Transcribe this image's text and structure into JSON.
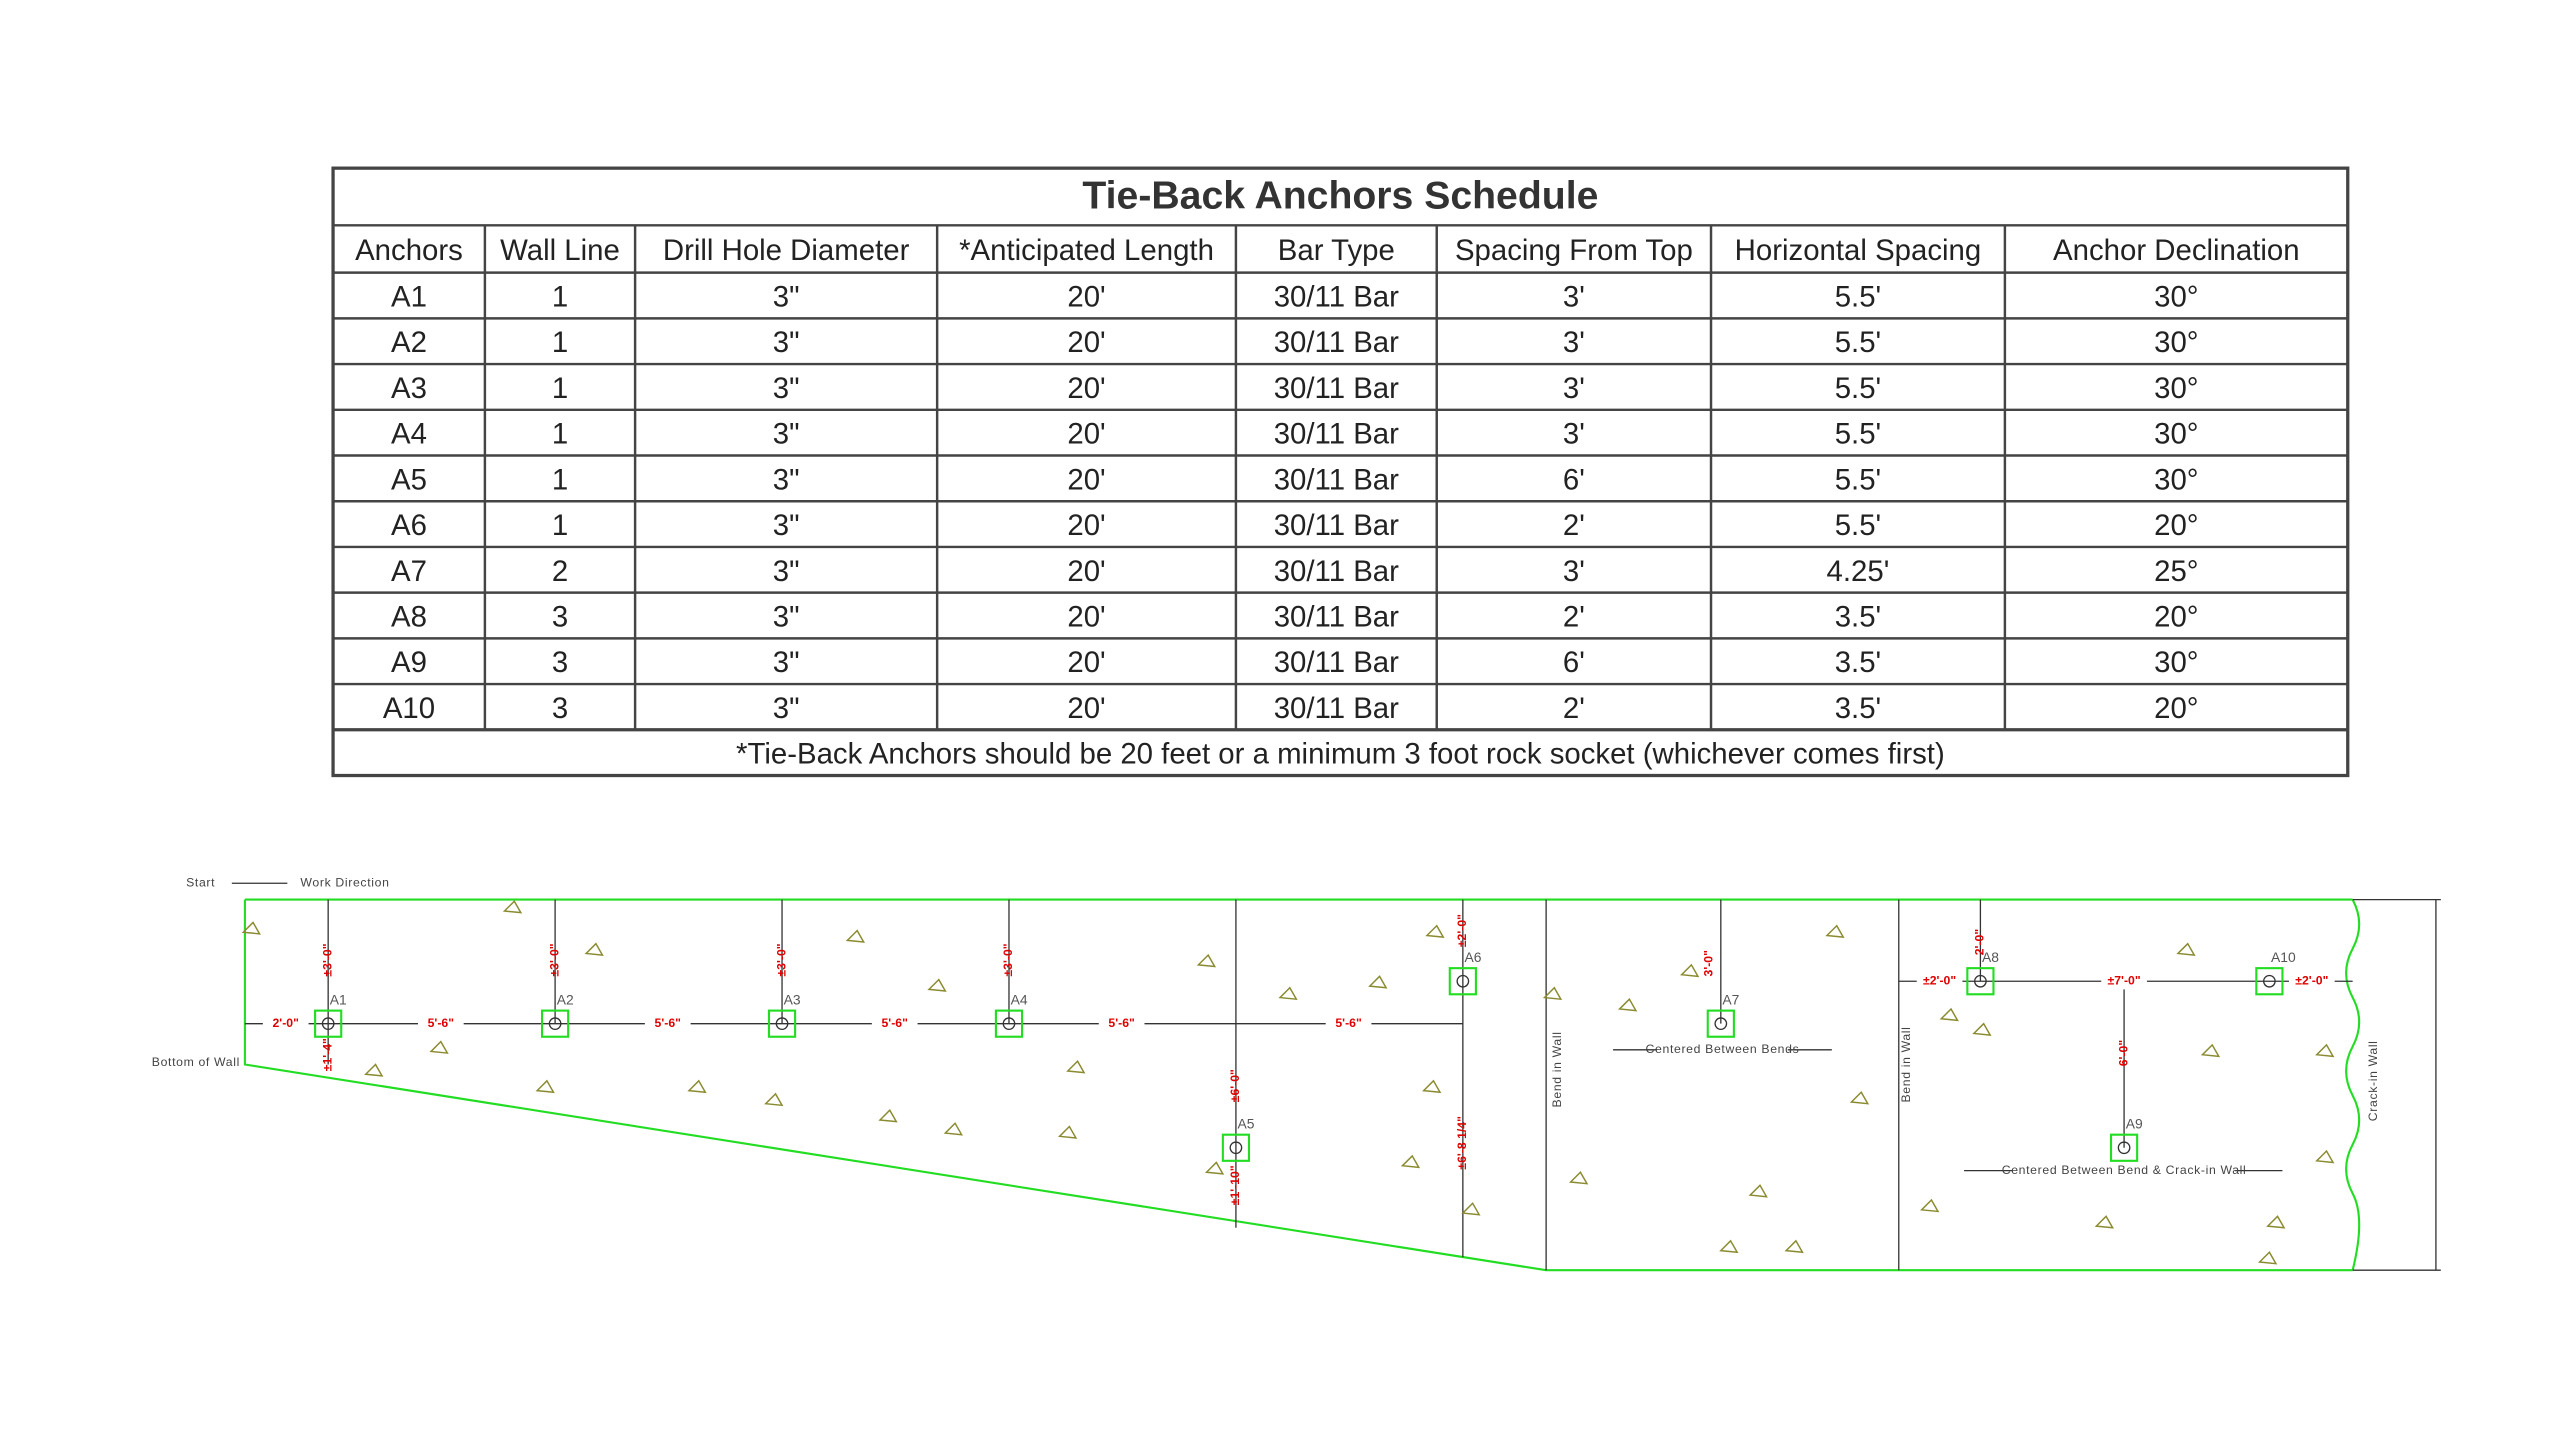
{
  "table": {
    "title": "Tie-Back Anchors Schedule",
    "headers": [
      "Anchors",
      "Wall Line",
      "Drill Hole Diameter",
      "*Anticipated Length",
      "Bar Type",
      "Spacing From Top",
      "Horizontal Spacing",
      "Anchor Declination"
    ],
    "rows": [
      [
        "A1",
        "1",
        "3\"",
        "20'",
        "30/11 Bar",
        "3'",
        "5.5'",
        "30°"
      ],
      [
        "A2",
        "1",
        "3\"",
        "20'",
        "30/11 Bar",
        "3'",
        "5.5'",
        "30°"
      ],
      [
        "A3",
        "1",
        "3\"",
        "20'",
        "30/11 Bar",
        "3'",
        "5.5'",
        "30°"
      ],
      [
        "A4",
        "1",
        "3\"",
        "20'",
        "30/11 Bar",
        "3'",
        "5.5'",
        "30°"
      ],
      [
        "A5",
        "1",
        "3\"",
        "20'",
        "30/11 Bar",
        "6'",
        "5.5'",
        "30°"
      ],
      [
        "A6",
        "1",
        "3\"",
        "20'",
        "30/11 Bar",
        "2'",
        "5.5'",
        "20°"
      ],
      [
        "A7",
        "2",
        "3\"",
        "20'",
        "30/11 Bar",
        "3'",
        "4.25'",
        "25°"
      ],
      [
        "A8",
        "3",
        "3\"",
        "20'",
        "30/11 Bar",
        "2'",
        "3.5'",
        "20°"
      ],
      [
        "A9",
        "3",
        "3\"",
        "20'",
        "30/11 Bar",
        "6'",
        "3.5'",
        "30°"
      ],
      [
        "A10",
        "3",
        "3\"",
        "20'",
        "30/11 Bar",
        "2'",
        "3.5'",
        "20°"
      ]
    ],
    "footnote": "*Tie-Back Anchors should be 20 feet or a minimum 3 foot rock socket (whichever comes first)"
  },
  "drawing": {
    "start": "Start",
    "work_direction": "Work Direction",
    "bottom_of_wall": "Bottom of Wall",
    "bend_1": "Bend in Wall",
    "bend_2": "Bend in Wall",
    "crack": "Crack-in Wall",
    "centered_bends": "Centered Between Bends",
    "centered_bend_crack": "Centered Between Bend & Crack-in Wall",
    "anchors": [
      "A1",
      "A2",
      "A3",
      "A4",
      "A5",
      "A6",
      "A7",
      "A8",
      "A9",
      "A10"
    ],
    "dimensions": [
      "2'-0\"",
      "5'-6\"",
      "5'-6\"",
      "5'-6\"",
      "5'-6\"",
      "5'-6\"",
      "±3'-0\"",
      "±3'-0\"",
      "±3'-0\"",
      "±3'-0\"",
      "±1'-4\"",
      "±6'-0\"",
      "±1'-10\"",
      "±2'-0\"",
      "±6'-8 1/4\"",
      "3'-0\"",
      "2'-0\"",
      "±2'-0\"",
      "±7'-0\"",
      "±2'-0\"",
      "6'-0\""
    ]
  }
}
